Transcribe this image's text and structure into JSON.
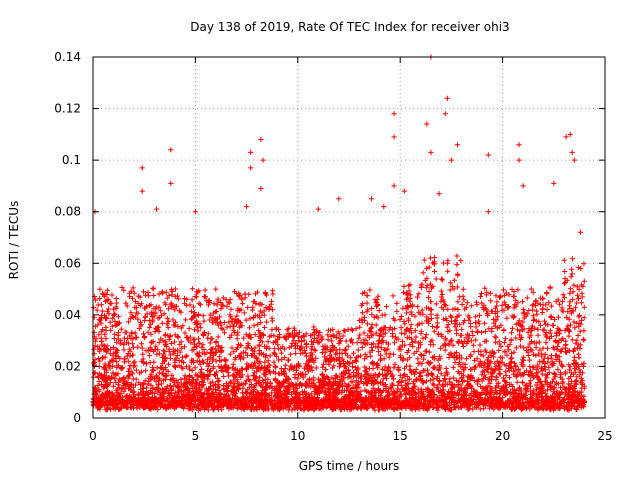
{
  "chart_data": {
    "type": "scatter",
    "title": "Day 138 of 2019, Rate Of TEC Index for receiver ohi3",
    "xlabel": "GPS time / hours",
    "ylabel": "ROTI / TECUs",
    "xlim": [
      0,
      25
    ],
    "ylim": [
      0,
      0.14
    ],
    "x_ticks": [
      0,
      5,
      10,
      15,
      20,
      25
    ],
    "x_tick_labels": [
      "0",
      "5",
      "10",
      "15",
      "20",
      "25"
    ],
    "y_ticks": [
      0,
      0.02,
      0.04,
      0.06,
      0.08,
      0.1,
      0.12,
      0.14
    ],
    "y_tick_labels": [
      "0",
      "0.02",
      "0.04",
      "0.06",
      "0.08",
      "0.1",
      "0.12",
      "0.14"
    ],
    "grid": true,
    "marker": "+",
    "color": "#ff0000",
    "series": [
      {
        "name": "ROTI",
        "generated_points": 5500,
        "baseline_min": 0.003,
        "x_range": [
          0,
          24
        ],
        "notable_points": [
          [
            0.1,
            0.08
          ],
          [
            2.4,
            0.097
          ],
          [
            2.4,
            0.088
          ],
          [
            3.1,
            0.081
          ],
          [
            3.8,
            0.104
          ],
          [
            3.8,
            0.091
          ],
          [
            5.0,
            0.08
          ],
          [
            7.5,
            0.082
          ],
          [
            7.7,
            0.103
          ],
          [
            7.7,
            0.097
          ],
          [
            8.2,
            0.108
          ],
          [
            8.2,
            0.089
          ],
          [
            8.3,
            0.1
          ],
          [
            11.0,
            0.081
          ],
          [
            12.0,
            0.085
          ],
          [
            13.6,
            0.085
          ],
          [
            14.2,
            0.082
          ],
          [
            14.7,
            0.118
          ],
          [
            14.7,
            0.109
          ],
          [
            14.7,
            0.09
          ],
          [
            15.2,
            0.088
          ],
          [
            16.3,
            0.114
          ],
          [
            16.5,
            0.14
          ],
          [
            16.5,
            0.103
          ],
          [
            16.9,
            0.087
          ],
          [
            17.2,
            0.118
          ],
          [
            17.3,
            0.124
          ],
          [
            17.5,
            0.1
          ],
          [
            17.8,
            0.106
          ],
          [
            19.3,
            0.102
          ],
          [
            19.3,
            0.08
          ],
          [
            20.8,
            0.106
          ],
          [
            20.8,
            0.1
          ],
          [
            21.0,
            0.09
          ],
          [
            22.5,
            0.091
          ],
          [
            23.1,
            0.109
          ],
          [
            23.3,
            0.11
          ],
          [
            23.4,
            0.103
          ],
          [
            23.5,
            0.1
          ],
          [
            23.8,
            0.072
          ]
        ]
      }
    ]
  }
}
